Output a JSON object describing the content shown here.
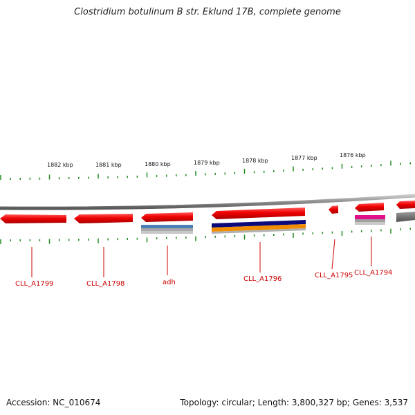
{
  "title": "Clostridium botulinum B str. Eklund 17B, complete genome",
  "footer": {
    "accession": "Accession: NC_010674",
    "summary": "Topology: circular; Length: 3,800,327 bp; Genes: 3,537"
  },
  "colors": {
    "backbone": "#8c8c8c",
    "gene_red": "#ee0000",
    "tick_green": "#1f8a1f",
    "label_red": "#cc0000",
    "steel_blue": "#4a7fb5",
    "navy": "#0a0a7a",
    "orange": "#f08c00",
    "magenta": "#e0108a",
    "gray": "#7a7a7a"
  },
  "kbp_labels": [
    "1882 kbp",
    "1881 kbp",
    "1880 kbp",
    "1879 kbp",
    "1878 kbp",
    "1877 kbp",
    "1876 kbp"
  ],
  "gene_labels": [
    "CLL_A1799",
    "CLL_A1798",
    "adh",
    "CLL_A1796",
    "CLL_A1795",
    "CLL_A1794"
  ]
}
